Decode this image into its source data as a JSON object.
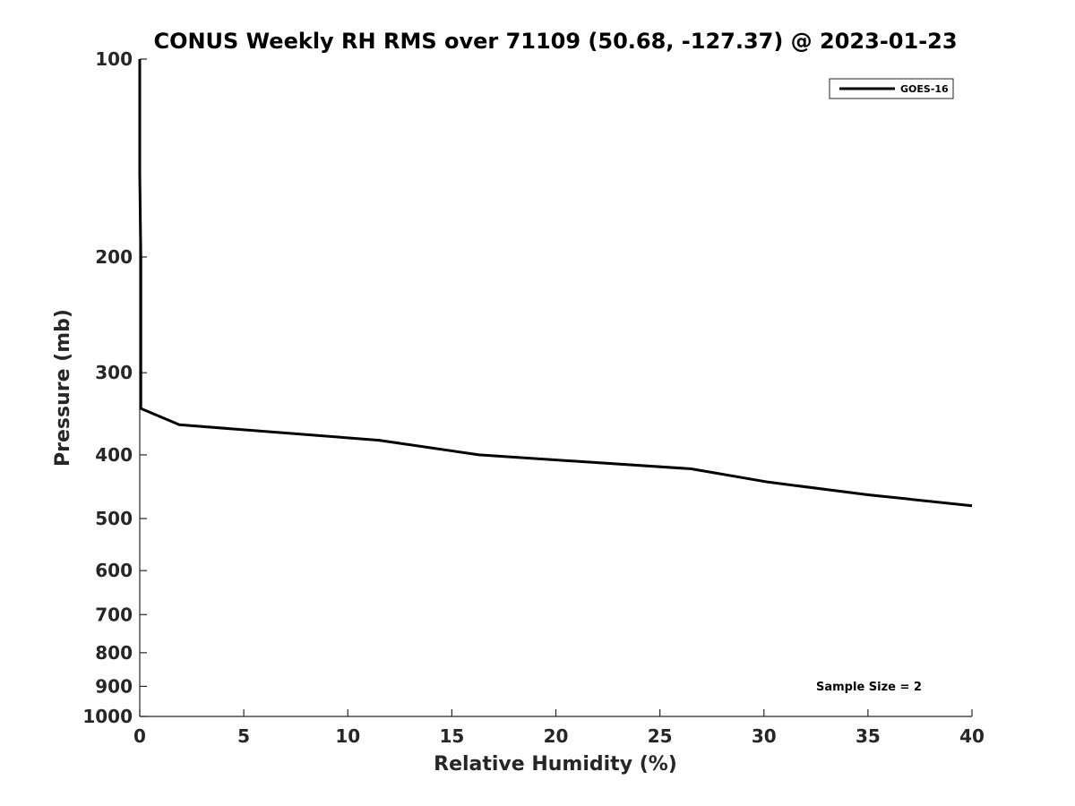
{
  "chart_data": {
    "type": "line",
    "title": "CONUS Weekly RH RMS over 71109 (50.68, -127.37) @ 2023-01-23",
    "xlabel": "Relative Humidity (%)",
    "ylabel": "Pressure (mb)",
    "xlim": [
      0,
      40
    ],
    "ylim": [
      100,
      1000
    ],
    "y_scale": "log",
    "y_reversed": true,
    "x_ticks": [
      0,
      5,
      10,
      15,
      20,
      25,
      30,
      35,
      40
    ],
    "y_ticks": [
      100,
      200,
      300,
      400,
      500,
      600,
      700,
      800,
      900,
      1000
    ],
    "grid": false,
    "legend_position": "top-right",
    "series": [
      {
        "name": "GOES-16",
        "color": "#000000",
        "points": [
          {
            "x": 0.0,
            "y": 100
          },
          {
            "x": 0.0,
            "y": 150
          },
          {
            "x": 0.05,
            "y": 200
          },
          {
            "x": 0.05,
            "y": 250
          },
          {
            "x": 0.05,
            "y": 300
          },
          {
            "x": 0.05,
            "y": 340
          },
          {
            "x": 1.9,
            "y": 360
          },
          {
            "x": 11.5,
            "y": 380
          },
          {
            "x": 16.3,
            "y": 400
          },
          {
            "x": 26.5,
            "y": 420
          },
          {
            "x": 30.2,
            "y": 440
          },
          {
            "x": 35.0,
            "y": 460
          },
          {
            "x": 40.0,
            "y": 478
          }
        ]
      }
    ],
    "annotations": [
      "Sample Size = 2"
    ]
  }
}
